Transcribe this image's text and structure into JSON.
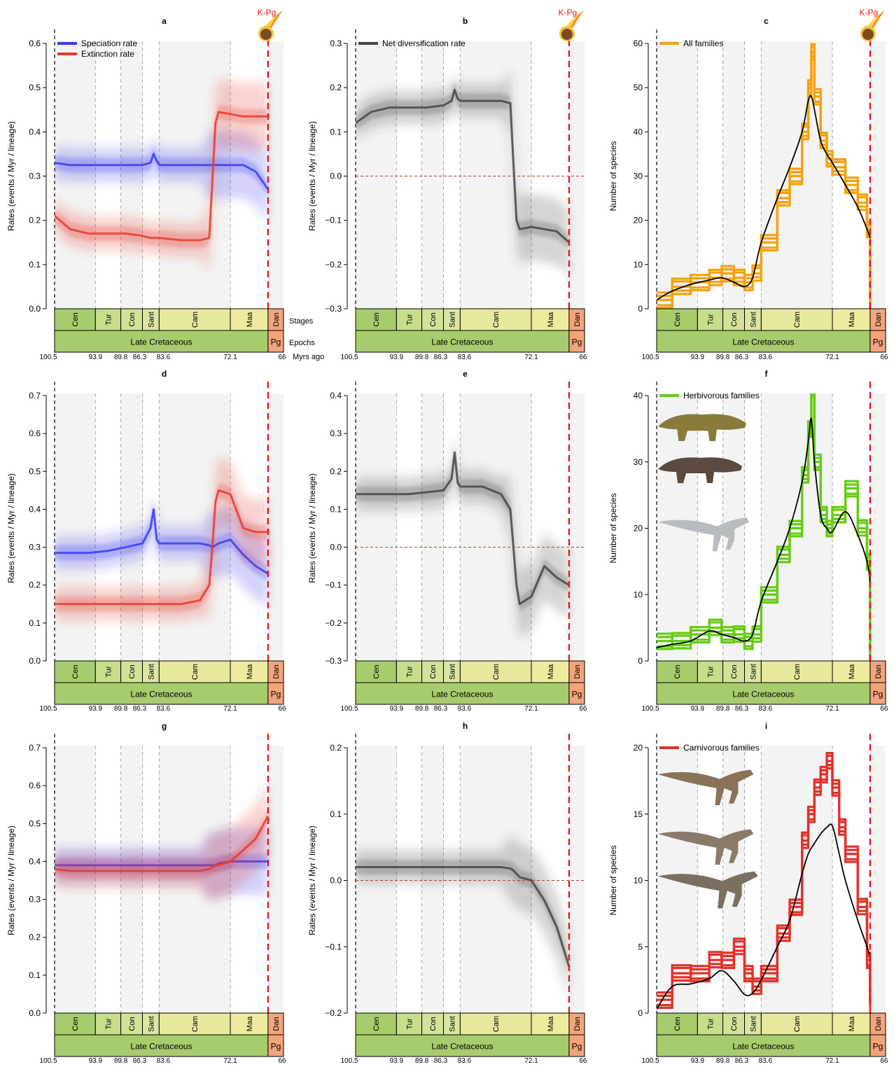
{
  "title": "",
  "colors": {
    "speciation": "#3b3bf0",
    "extinction": "#e8392a",
    "net": "#444444",
    "all_families": "#f5a10a",
    "herbivorous": "#66cc11",
    "carnivorous": "#e5302a",
    "smooth_curve": "#000000",
    "kpg_line": "#e51a1a",
    "stage_late_cretaceous": "#e8e89a",
    "stage_cen": "#a6cc6e",
    "epoch_late_cretaceous": "#a6cc6e",
    "paleogene": "#f2a47a"
  },
  "timescale": {
    "stages": [
      {
        "name": "Cen",
        "start": 100.5,
        "end": 93.9,
        "color": "#a6cc6e"
      },
      {
        "name": "Tur",
        "start": 93.9,
        "end": 89.8,
        "color": "#c8dd8a"
      },
      {
        "name": "Con",
        "start": 89.8,
        "end": 86.3,
        "color": "#d2e298"
      },
      {
        "name": "Sant",
        "start": 86.3,
        "end": 83.6,
        "color": "#dbe6a2"
      },
      {
        "name": "Cam",
        "start": 83.6,
        "end": 72.1,
        "color": "#e6e89c"
      },
      {
        "name": "Maa",
        "start": 72.1,
        "end": 66.0,
        "color": "#eeeb9e"
      },
      {
        "name": "Dan",
        "start": 66.0,
        "end": 63.5,
        "color": "#f2a47a"
      }
    ],
    "epochs": [
      {
        "name": "Late Cretaceous",
        "start": 100.5,
        "end": 66.0,
        "color": "#a6cc6e"
      },
      {
        "name": "Pg",
        "start": 66.0,
        "end": 63.5,
        "color": "#f2a47a"
      }
    ],
    "ticks": [
      "100.5",
      "93.9",
      "89.8",
      "86.3",
      "83.6",
      "72.1",
      "66"
    ],
    "row_labels": {
      "stages": "Stages",
      "epochs": "Epochs",
      "myrs": "Myrs ago"
    },
    "kpg_label": "K-Pg"
  },
  "chart_data": [
    {
      "panel": "a",
      "type": "line",
      "title": "a",
      "ylabel": "Rates (events / Myr / lineage)",
      "ylim": [
        0,
        0.6
      ],
      "yticks": [
        "0.0",
        "0.1",
        "0.2",
        "0.3",
        "0.4",
        "0.5",
        "0.6"
      ],
      "legend": [
        "Speciation rate",
        "Extinction rate"
      ],
      "x": [
        100.5,
        98,
        95,
        92,
        89,
        86.3,
        85,
        84.5,
        84,
        83.6,
        80,
        77,
        75.5,
        75,
        74.5,
        74,
        72.1,
        70,
        68,
        66
      ],
      "series": [
        {
          "name": "Speciation rate",
          "values": [
            0.33,
            0.325,
            0.325,
            0.325,
            0.325,
            0.325,
            0.33,
            0.35,
            0.335,
            0.325,
            0.325,
            0.325,
            0.325,
            0.325,
            0.325,
            0.325,
            0.325,
            0.325,
            0.31,
            0.27
          ]
        },
        {
          "name": "Extinction rate",
          "values": [
            0.21,
            0.18,
            0.17,
            0.17,
            0.17,
            0.165,
            0.16,
            0.16,
            0.16,
            0.16,
            0.155,
            0.155,
            0.16,
            0.29,
            0.42,
            0.445,
            0.44,
            0.435,
            0.435,
            0.435
          ]
        }
      ]
    },
    {
      "panel": "b",
      "type": "line",
      "title": "b",
      "ylabel": "Rates (events / Myr / lineage)",
      "ylim": [
        -0.3,
        0.3
      ],
      "yticks": [
        "−0.3",
        "−0.2",
        "−0.1",
        "0.0",
        "0.1",
        "0.2",
        "0.3"
      ],
      "legend": [
        "Net diversification rate"
      ],
      "x": [
        100.5,
        98,
        95,
        92,
        89,
        86.3,
        85,
        84.5,
        84,
        83.6,
        80,
        77,
        75.5,
        75,
        74.5,
        74,
        72.1,
        70,
        68,
        66
      ],
      "series": [
        {
          "name": "Net diversification rate",
          "values": [
            0.12,
            0.145,
            0.155,
            0.155,
            0.155,
            0.16,
            0.17,
            0.195,
            0.175,
            0.17,
            0.17,
            0.17,
            0.165,
            0.03,
            -0.1,
            -0.12,
            -0.115,
            -0.12,
            -0.125,
            -0.15
          ]
        }
      ]
    },
    {
      "panel": "c",
      "type": "line",
      "title": "c",
      "ylabel": "Number of species",
      "ylim": [
        0,
        60
      ],
      "yticks": [
        "0",
        "10",
        "20",
        "30",
        "40",
        "50",
        "60"
      ],
      "legend": [
        "All families"
      ],
      "x": [
        100.5,
        98,
        95,
        92,
        90,
        88,
        86.3,
        85,
        83.6,
        81,
        79,
        77,
        76,
        75.5,
        75,
        74,
        73,
        72.1,
        70,
        68,
        66.5,
        66
      ],
      "series": [
        {
          "name": "All families",
          "values": [
            2,
            5,
            6,
            7,
            8,
            7,
            6,
            8,
            15,
            25,
            30,
            40,
            50,
            58,
            48,
            38,
            34,
            32,
            28,
            24,
            18,
            1
          ]
        },
        {
          "name": "",
          "values": [
            2,
            4,
            5.5,
            6.5,
            7,
            6,
            5,
            7,
            15,
            25,
            32,
            40,
            47,
            48,
            45,
            38,
            35,
            33,
            28,
            23,
            18,
            16
          ]
        }
      ]
    },
    {
      "panel": "d",
      "type": "line",
      "title": "d",
      "ylabel": "Rates (events / Myr / lineage)",
      "ylim": [
        0,
        0.7
      ],
      "yticks": [
        "0.0",
        "0.1",
        "0.2",
        "0.3",
        "0.4",
        "0.5",
        "0.6",
        "0.7"
      ],
      "x": [
        100.5,
        98,
        95,
        92,
        89,
        86.3,
        85,
        84.5,
        84,
        83.6,
        80,
        77,
        75.5,
        75,
        74.5,
        74,
        72.1,
        70,
        68,
        66
      ],
      "series": [
        {
          "name": "",
          "values": [
            0.285,
            0.285,
            0.285,
            0.29,
            0.3,
            0.31,
            0.35,
            0.4,
            0.32,
            0.31,
            0.31,
            0.31,
            0.305,
            0.3,
            0.305,
            0.31,
            0.32,
            0.28,
            0.25,
            0.23
          ]
        },
        {
          "name": "",
          "values": [
            0.15,
            0.15,
            0.15,
            0.15,
            0.15,
            0.15,
            0.15,
            0.15,
            0.15,
            0.15,
            0.15,
            0.16,
            0.2,
            0.3,
            0.42,
            0.45,
            0.44,
            0.35,
            0.34,
            0.34
          ]
        }
      ]
    },
    {
      "panel": "e",
      "type": "line",
      "title": "e",
      "ylabel": "Rates (events / Myr / lineage)",
      "ylim": [
        -0.3,
        0.4
      ],
      "yticks": [
        "−0.3",
        "−0.2",
        "−0.1",
        "0.0",
        "0.1",
        "0.2",
        "0.3",
        "0.4"
      ],
      "x": [
        100.5,
        98,
        95,
        92,
        89,
        86.3,
        85,
        84.5,
        84,
        83.6,
        80,
        77,
        75.5,
        75,
        74.5,
        74,
        72.1,
        70,
        68,
        66
      ],
      "series": [
        {
          "name": "",
          "values": [
            0.14,
            0.14,
            0.14,
            0.14,
            0.145,
            0.15,
            0.18,
            0.25,
            0.17,
            0.16,
            0.16,
            0.14,
            0.1,
            0.0,
            -0.1,
            -0.15,
            -0.13,
            -0.05,
            -0.08,
            -0.1
          ]
        }
      ]
    },
    {
      "panel": "f",
      "type": "line",
      "title": "f",
      "ylabel": "Number of species",
      "ylim": [
        0,
        40
      ],
      "yticks": [
        "0",
        "10",
        "20",
        "30",
        "40"
      ],
      "legend": [
        "Herbivorous families"
      ],
      "x": [
        100.5,
        98,
        95,
        92,
        90,
        88,
        86.3,
        85,
        83.6,
        81,
        79,
        77,
        76,
        75.5,
        75,
        74,
        73,
        72.1,
        70,
        68,
        66.5,
        66
      ],
      "series": [
        {
          "name": "Herbivorous families",
          "values": [
            3,
            3,
            4,
            5,
            4,
            4,
            3,
            4,
            10,
            16,
            20,
            28,
            35,
            41,
            30,
            22,
            20,
            22,
            26,
            20,
            15,
            1
          ]
        },
        {
          "name": "",
          "values": [
            2,
            2.5,
            3,
            4.5,
            4,
            3.5,
            3,
            4,
            9,
            15,
            20,
            27,
            33,
            36.5,
            30,
            22,
            20,
            19.5,
            22.5,
            19,
            15,
            12
          ]
        }
      ]
    },
    {
      "panel": "g",
      "type": "line",
      "title": "g",
      "ylabel": "Rates (events / Myr / lineage)",
      "ylim": [
        0,
        0.7
      ],
      "yticks": [
        "0.0",
        "0.1",
        "0.2",
        "0.3",
        "0.4",
        "0.5",
        "0.6",
        "0.7"
      ],
      "x": [
        100.5,
        98,
        95,
        92,
        89,
        86.3,
        85,
        84.5,
        84,
        83.6,
        80,
        77,
        75.5,
        75,
        74.5,
        74,
        72.1,
        70,
        68,
        66
      ],
      "series": [
        {
          "name": "",
          "values": [
            0.39,
            0.39,
            0.39,
            0.39,
            0.39,
            0.39,
            0.39,
            0.39,
            0.39,
            0.39,
            0.39,
            0.39,
            0.39,
            0.39,
            0.39,
            0.395,
            0.4,
            0.4,
            0.4,
            0.4
          ]
        },
        {
          "name": "",
          "values": [
            0.38,
            0.375,
            0.375,
            0.375,
            0.375,
            0.375,
            0.375,
            0.375,
            0.375,
            0.375,
            0.375,
            0.375,
            0.38,
            0.385,
            0.39,
            0.39,
            0.4,
            0.43,
            0.46,
            0.52
          ]
        }
      ]
    },
    {
      "panel": "h",
      "type": "line",
      "title": "h",
      "ylabel": "Rates (events / Myr / lineage)",
      "ylim": [
        -0.2,
        0.2
      ],
      "yticks": [
        "−0.2",
        "−0.1",
        "0.0",
        "0.1",
        "0.2"
      ],
      "x": [
        100.5,
        98,
        95,
        92,
        89,
        86.3,
        85,
        84.5,
        84,
        83.6,
        80,
        77,
        75.5,
        75,
        74.5,
        74,
        72.1,
        70,
        68,
        66
      ],
      "series": [
        {
          "name": "",
          "values": [
            0.02,
            0.02,
            0.02,
            0.02,
            0.02,
            0.02,
            0.02,
            0.02,
            0.02,
            0.02,
            0.02,
            0.02,
            0.018,
            0.015,
            0.01,
            0.005,
            0.0,
            -0.03,
            -0.07,
            -0.13
          ]
        }
      ]
    },
    {
      "panel": "i",
      "type": "line",
      "title": "i",
      "ylabel": "Number of species",
      "ylim": [
        0,
        20
      ],
      "yticks": [
        "0",
        "5",
        "10",
        "15",
        "20"
      ],
      "legend": [
        "Carnivorous families"
      ],
      "x": [
        100.5,
        98,
        95,
        92,
        90,
        88,
        86.3,
        85,
        83.6,
        81,
        79,
        77,
        76,
        75,
        74,
        73,
        72.1,
        71,
        70,
        68,
        66.5,
        66
      ],
      "series": [
        {
          "name": "Carnivorous families",
          "values": [
            1,
            3,
            3,
            4,
            4,
            5,
            3,
            2,
            3,
            6,
            8,
            13,
            15,
            17,
            18,
            19,
            17,
            14,
            12,
            8,
            4,
            1
          ]
        },
        {
          "name": "",
          "values": [
            0.3,
            2,
            2.2,
            2.6,
            3.2,
            2.4,
            1.4,
            1.5,
            2.5,
            5,
            7,
            10.5,
            12,
            12.8,
            13.5,
            14,
            14.1,
            12,
            10,
            7,
            5,
            4.2
          ]
        }
      ]
    }
  ]
}
